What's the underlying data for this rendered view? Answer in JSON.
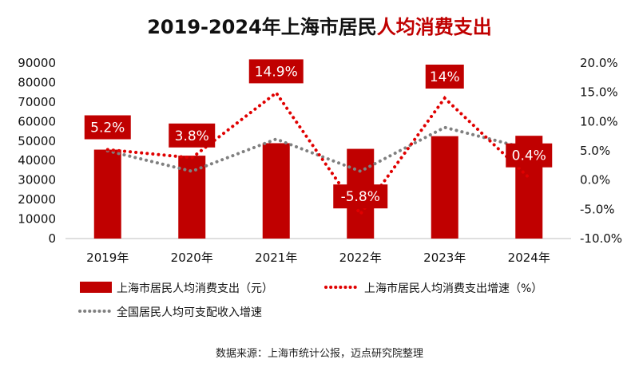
{
  "title": {
    "prefix": "2019-2024年上海市居民",
    "highlight": "人均消费支出"
  },
  "source": "数据来源：上海市统计公报，迈点研究院整理",
  "colors": {
    "bar": "#c00000",
    "sh_growth": "#e00000",
    "nat_growth": "#808080",
    "label_bg": "#c00000",
    "label_text": "#ffffff"
  },
  "chart_data": {
    "type": "bar",
    "categories": [
      "2019年",
      "2020年",
      "2021年",
      "2022年",
      "2023年",
      "2024年"
    ],
    "series": [
      {
        "name": "上海市居民人均消费支出（元）",
        "type": "bar",
        "axis": "left",
        "values": [
          45600,
          42500,
          48900,
          46000,
          52500,
          52700
        ]
      },
      {
        "name": "上海市居民人均消费支出增速（%）",
        "type": "line",
        "style": "dotted",
        "axis": "right",
        "values": [
          5.2,
          3.8,
          14.9,
          -5.8,
          14.0,
          0.4
        ],
        "labels": [
          "5.2%",
          "3.8%",
          "14.9%",
          "-5.8%",
          "14%",
          "0.4%"
        ]
      },
      {
        "name": "全国居民人均可支配收入增速",
        "type": "line",
        "style": "dotted",
        "axis": "right",
        "values": [
          5.0,
          1.5,
          7.0,
          1.5,
          9.0,
          5.3
        ]
      }
    ],
    "y_left": {
      "ylim": [
        0,
        90000
      ],
      "ticks": [
        "90000",
        "80000",
        "70000",
        "60000",
        "50000",
        "40000",
        "30000",
        "20000",
        "10000",
        "0"
      ]
    },
    "y_right": {
      "ylim": [
        -10,
        20
      ],
      "ticks": [
        "20.0%",
        "15.0%",
        "10.0%",
        "5.0%",
        "0.0%",
        "-5.0%",
        "-10.0%"
      ]
    },
    "grid": false,
    "legend_position": "bottom"
  }
}
